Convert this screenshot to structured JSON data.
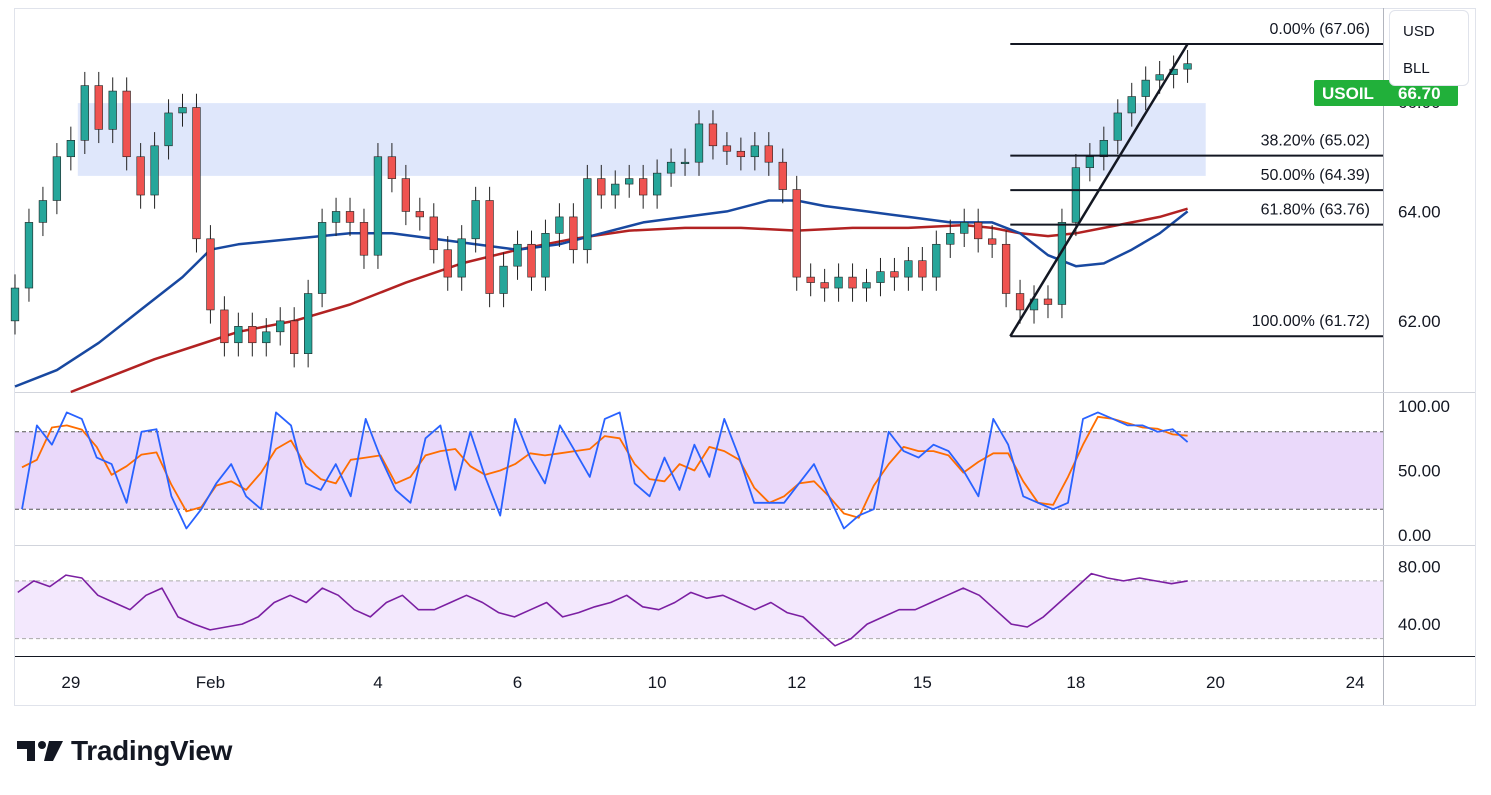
{
  "unit_selector": {
    "currency": "USD",
    "unit": "BLL"
  },
  "brand": {
    "name": "TradingView",
    "icon": "tradingview-logo-icon"
  },
  "chart_data": {
    "type": "candlestick",
    "symbol": "USOIL",
    "last_price_label": "66.70",
    "colors": {
      "up": "#26a69a",
      "down": "#ef5350",
      "candle": "#222222",
      "ma_fast": "#1848a0",
      "ma_slow": "#b22222",
      "zone": "#dce4fb",
      "stoch_k": "#2962ff",
      "stoch_d": "#ff6d00",
      "rsi": "#7b1fa2",
      "osc_band": "#e6d2f9",
      "badge": "#21b03a"
    },
    "x_axis": {
      "ticks": [
        {
          "label": "29",
          "pos": 4
        },
        {
          "label": "Feb",
          "pos": 14
        },
        {
          "label": "4",
          "pos": 26
        },
        {
          "label": "6",
          "pos": 36
        },
        {
          "label": "10",
          "pos": 46
        },
        {
          "label": "12",
          "pos": 56
        },
        {
          "label": "15",
          "pos": 65
        },
        {
          "label": "18",
          "pos": 76
        },
        {
          "label": "20",
          "pos": 86
        },
        {
          "label": "24",
          "pos": 96
        }
      ],
      "range": [
        0,
        98
      ]
    },
    "price_axis": {
      "ticks": [
        "66.00",
        "64.00",
        "62.00"
      ],
      "tick_values": [
        66,
        64,
        62
      ],
      "range": [
        60.7,
        67.7
      ]
    },
    "resistance_zone": {
      "low": 64.65,
      "high": 65.98,
      "x_start": 4.5,
      "x_end": 85.3
    },
    "fibonacci": {
      "x_start": 71.3,
      "x_end": 98,
      "levels": [
        {
          "label": "0.00% (67.06)",
          "value": 67.06
        },
        {
          "label": "38.20% (65.02)",
          "value": 65.02
        },
        {
          "label": "50.00% (64.39)",
          "value": 64.39
        },
        {
          "label": "61.80% (63.76)",
          "value": 63.76
        },
        {
          "label": "100.00% (61.72)",
          "value": 61.72
        }
      ]
    },
    "trend_line": {
      "x": [
        71.3,
        84.0
      ],
      "y": [
        61.72,
        67.06
      ]
    },
    "candles": [
      [
        0,
        62.0,
        62.6
      ],
      [
        1,
        62.6,
        63.8
      ],
      [
        2,
        63.8,
        64.2
      ],
      [
        3,
        64.2,
        65.0
      ],
      [
        4,
        65.0,
        65.3
      ],
      [
        5,
        65.3,
        66.3
      ],
      [
        6,
        66.3,
        65.5
      ],
      [
        7,
        65.5,
        66.2
      ],
      [
        8,
        66.2,
        65.0
      ],
      [
        9,
        65.0,
        64.3
      ],
      [
        10,
        64.3,
        65.2
      ],
      [
        11,
        65.2,
        65.8
      ],
      [
        12,
        65.8,
        65.9
      ],
      [
        13,
        65.9,
        63.5
      ],
      [
        14,
        63.5,
        62.2
      ],
      [
        15,
        62.2,
        61.6
      ],
      [
        16,
        61.6,
        61.9
      ],
      [
        17,
        61.9,
        61.6
      ],
      [
        18,
        61.6,
        61.8
      ],
      [
        19,
        61.8,
        62.0
      ],
      [
        20,
        62.0,
        61.4
      ],
      [
        21,
        61.4,
        62.5
      ],
      [
        22,
        62.5,
        63.8
      ],
      [
        23,
        63.8,
        64.0
      ],
      [
        24,
        64.0,
        63.8
      ],
      [
        25,
        63.8,
        63.2
      ],
      [
        26,
        63.2,
        65.0
      ],
      [
        27,
        65.0,
        64.6
      ],
      [
        28,
        64.6,
        64.0
      ],
      [
        29,
        64.0,
        63.9
      ],
      [
        30,
        63.9,
        63.3
      ],
      [
        31,
        63.3,
        62.8
      ],
      [
        32,
        62.8,
        63.5
      ],
      [
        33,
        63.5,
        64.2
      ],
      [
        34,
        64.2,
        62.5
      ],
      [
        35,
        62.5,
        63.0
      ],
      [
        36,
        63.0,
        63.4
      ],
      [
        37,
        63.4,
        62.8
      ],
      [
        38,
        62.8,
        63.6
      ],
      [
        39,
        63.6,
        63.9
      ],
      [
        40,
        63.9,
        63.3
      ],
      [
        41,
        63.3,
        64.6
      ],
      [
        42,
        64.6,
        64.3
      ],
      [
        43,
        64.3,
        64.5
      ],
      [
        44,
        64.5,
        64.6
      ],
      [
        45,
        64.6,
        64.3
      ],
      [
        46,
        64.3,
        64.7
      ],
      [
        47,
        64.7,
        64.9
      ],
      [
        48,
        64.9,
        64.9
      ],
      [
        49,
        64.9,
        65.6
      ],
      [
        50,
        65.6,
        65.2
      ],
      [
        51,
        65.2,
        65.1
      ],
      [
        52,
        65.1,
        65.0
      ],
      [
        53,
        65.0,
        65.2
      ],
      [
        54,
        65.2,
        64.9
      ],
      [
        55,
        64.9,
        64.4
      ],
      [
        56,
        64.4,
        62.8
      ],
      [
        57,
        62.8,
        62.7
      ],
      [
        58,
        62.7,
        62.6
      ],
      [
        59,
        62.6,
        62.8
      ],
      [
        60,
        62.8,
        62.6
      ],
      [
        61,
        62.6,
        62.7
      ],
      [
        62,
        62.7,
        62.9
      ],
      [
        63,
        62.9,
        62.8
      ],
      [
        64,
        62.8,
        63.1
      ],
      [
        65,
        63.1,
        62.8
      ],
      [
        66,
        62.8,
        63.4
      ],
      [
        67,
        63.4,
        63.6
      ],
      [
        68,
        63.6,
        63.8
      ],
      [
        69,
        63.8,
        63.5
      ],
      [
        70,
        63.5,
        63.4
      ],
      [
        71,
        63.4,
        62.5
      ],
      [
        72,
        62.5,
        62.2
      ],
      [
        73,
        62.2,
        62.4
      ],
      [
        74,
        62.4,
        62.3
      ],
      [
        75,
        62.3,
        63.8
      ],
      [
        76,
        63.8,
        64.8
      ],
      [
        77,
        64.8,
        65.0
      ],
      [
        78,
        65.0,
        65.3
      ],
      [
        79,
        65.3,
        65.8
      ],
      [
        80,
        65.8,
        66.1
      ],
      [
        81,
        66.1,
        66.4
      ],
      [
        82,
        66.4,
        66.5
      ],
      [
        83,
        66.5,
        66.6
      ],
      [
        84,
        66.6,
        66.7
      ]
    ],
    "ma_fast": {
      "x": [
        0,
        3,
        6,
        9,
        12,
        14,
        16,
        20,
        24,
        27,
        30,
        33,
        36,
        39,
        42,
        45,
        48,
        51,
        54,
        56,
        58,
        61,
        64,
        67,
        70,
        72,
        74,
        76,
        78,
        80,
        82,
        84
      ],
      "y": [
        60.8,
        61.1,
        61.6,
        62.2,
        62.8,
        63.3,
        63.4,
        63.5,
        63.6,
        63.6,
        63.5,
        63.4,
        63.3,
        63.4,
        63.6,
        63.8,
        63.9,
        64.0,
        64.2,
        64.2,
        64.1,
        64.0,
        63.9,
        63.8,
        63.8,
        63.6,
        63.2,
        63.0,
        63.05,
        63.3,
        63.6,
        64.0
      ]
    },
    "ma_slow": {
      "x": [
        4,
        7,
        10,
        13,
        16,
        20,
        24,
        28,
        32,
        36,
        40,
        44,
        48,
        52,
        56,
        60,
        64,
        68,
        70,
        72,
        74,
        76,
        78,
        80,
        82,
        84
      ],
      "y": [
        60.7,
        61.0,
        61.3,
        61.55,
        61.8,
        62.0,
        62.3,
        62.7,
        63.05,
        63.3,
        63.5,
        63.65,
        63.7,
        63.7,
        63.65,
        63.7,
        63.7,
        63.75,
        63.7,
        63.6,
        63.55,
        63.6,
        63.7,
        63.8,
        63.9,
        64.05
      ]
    },
    "stochastic": {
      "range": [
        0,
        100
      ],
      "ticks": [
        "100.00",
        "50.00",
        "0.00"
      ],
      "tick_values": [
        100,
        50,
        0
      ],
      "band": [
        20,
        80
      ],
      "k": [
        20,
        85,
        70,
        95,
        90,
        60,
        55,
        25,
        80,
        82,
        30,
        5,
        20,
        40,
        55,
        30,
        20,
        95,
        85,
        40,
        35,
        55,
        30,
        90,
        60,
        35,
        25,
        75,
        85,
        35,
        80,
        45,
        15,
        90,
        60,
        40,
        85,
        65,
        45,
        90,
        95,
        40,
        30,
        60,
        35,
        70,
        45,
        90,
        60,
        25,
        25,
        25,
        40,
        55,
        30,
        5,
        15,
        20,
        80,
        65,
        60,
        70,
        65,
        50,
        30,
        90,
        70,
        30,
        25,
        20,
        25,
        90,
        95,
        90,
        85,
        85,
        80,
        82,
        72
      ]
    },
    "rsi": {
      "range": [
        20,
        90
      ],
      "ticks": [
        "80.00",
        "40.00"
      ],
      "tick_values": [
        80,
        40
      ],
      "band": [
        30,
        70
      ],
      "values": [
        62,
        70,
        66,
        74,
        72,
        60,
        55,
        50,
        60,
        65,
        45,
        40,
        36,
        38,
        40,
        45,
        55,
        60,
        55,
        65,
        60,
        50,
        45,
        55,
        60,
        50,
        50,
        55,
        60,
        55,
        48,
        45,
        50,
        55,
        45,
        48,
        52,
        55,
        60,
        52,
        50,
        55,
        62,
        58,
        60,
        55,
        50,
        55,
        48,
        45,
        35,
        25,
        30,
        40,
        45,
        50,
        50,
        55,
        60,
        65,
        60,
        50,
        40,
        38,
        45,
        55,
        65,
        75,
        72,
        70,
        72,
        70,
        68,
        70
      ]
    }
  }
}
